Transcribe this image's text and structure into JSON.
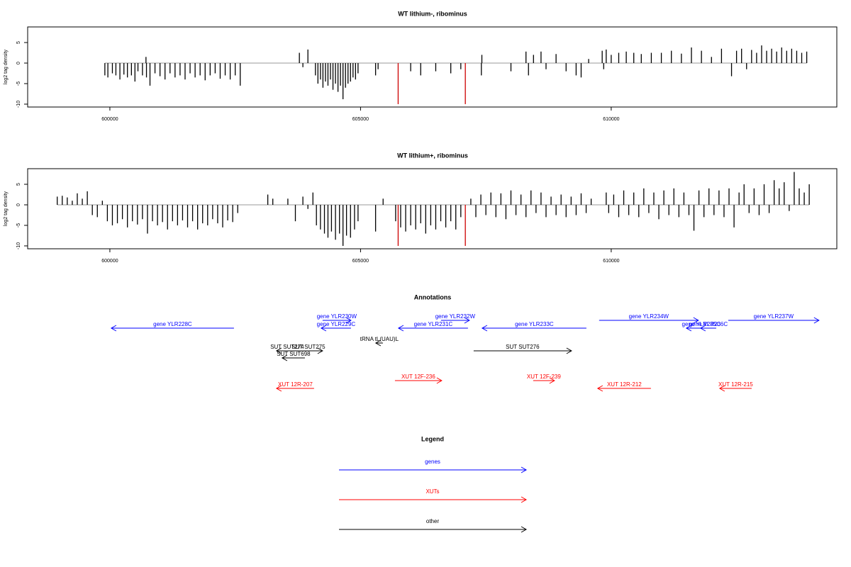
{
  "chart_data": [
    {
      "type": "spike",
      "title": "WT lithium-, ribominus",
      "y_label": "log2 tag density",
      "xlim": [
        598360,
        614500
      ],
      "ylim": [
        -10.7,
        8.8
      ],
      "xticks": [
        600000,
        605000,
        610000
      ],
      "yticks": [
        -10,
        -5,
        0,
        5
      ],
      "series": [
        {
          "color": "#000000",
          "x": [
            599900,
            599960,
            600050,
            600120,
            600200,
            600280,
            600350,
            600430,
            600500,
            600560,
            600650,
            600720,
            600730,
            600800,
            600900,
            601000,
            601100,
            601200,
            601300,
            601400,
            601500,
            601600,
            601700,
            601800,
            601900,
            602000,
            602100,
            602200,
            602300,
            602400,
            602500,
            602600,
            603780,
            603850,
            603950,
            604100,
            604150,
            604200,
            604250,
            604300,
            604350,
            604400,
            604450,
            604500,
            604550,
            604600,
            604650,
            604700,
            604750,
            604800,
            604850,
            604900,
            604950,
            605300,
            605350,
            606000,
            606200,
            606500,
            606800,
            607000,
            607410,
            607420,
            608000,
            608300,
            608350,
            608450,
            608600,
            608700,
            608900,
            609100,
            609300,
            609400,
            609550,
            609820,
            609850,
            609900,
            610000,
            610150,
            610300,
            610450,
            610600,
            610800,
            611000,
            611200,
            611400,
            611600,
            611800,
            612000,
            612200,
            612400,
            612500,
            612600,
            612700,
            612800,
            612900,
            613000,
            613100,
            613200,
            613300,
            613400,
            613500,
            613600,
            613700,
            613800,
            613900
          ],
          "values": [
            -3,
            -3.5,
            -2.5,
            -3,
            -4,
            -2.8,
            -3.5,
            -3,
            -4.5,
            -2,
            -3,
            1.5,
            -3.5,
            -5.5,
            -2.5,
            -3.2,
            -4,
            -2.5,
            -3.5,
            -3,
            -4,
            -2.5,
            -3.5,
            -3,
            -4.2,
            -3,
            -2.5,
            -3.8,
            -3,
            -4,
            -3,
            -5.5,
            2.5,
            -1,
            3.3,
            -3,
            -5,
            -4,
            -6,
            -4.5,
            -5.5,
            -4,
            -6.5,
            -5,
            -7,
            -5.5,
            -8.8,
            -6,
            -5,
            -4.5,
            -3.5,
            -4,
            -2.5,
            -3,
            -1.5,
            -2,
            -3,
            -2,
            -2.5,
            -1.5,
            -3,
            2,
            -2,
            2.8,
            -3,
            2,
            2.8,
            -1.5,
            2.2,
            -2,
            -3,
            -3.5,
            1,
            3,
            -1.5,
            3.3,
            2,
            2.5,
            2.8,
            2.5,
            2.2,
            2.5,
            2.5,
            3,
            2.3,
            3.8,
            3,
            1.5,
            3.5,
            -3.2,
            3,
            3.5,
            -1.5,
            3.2,
            2.5,
            4.3,
            3,
            3.5,
            2.8,
            3.8,
            3,
            3.5,
            3,
            2.5,
            2.8
          ]
        },
        {
          "color": "#cc0000",
          "x": [
            605750,
            607090
          ],
          "values": [
            -10,
            -10
          ]
        }
      ]
    },
    {
      "type": "spike",
      "title": "WT lithium+, ribominus",
      "y_label": "log2 tag density",
      "xlim": [
        598360,
        614500
      ],
      "ylim": [
        -10.7,
        8.8
      ],
      "xticks": [
        600000,
        605000,
        610000
      ],
      "yticks": [
        -10,
        -5,
        0,
        5
      ],
      "series": [
        {
          "color": "#000000",
          "x": [
            598950,
            599050,
            599150,
            599250,
            599350,
            599450,
            599550,
            599650,
            599750,
            599850,
            599950,
            600050,
            600150,
            600250,
            600350,
            600450,
            600550,
            600650,
            600750,
            600850,
            600950,
            601050,
            601150,
            601250,
            601350,
            601450,
            601550,
            601650,
            601750,
            601850,
            601950,
            602050,
            602150,
            602250,
            602350,
            602450,
            602550,
            603150,
            603250,
            603550,
            603700,
            603850,
            603950,
            604050,
            604120,
            604200,
            604280,
            604350,
            604420,
            604500,
            604580,
            604650,
            604720,
            604800,
            604880,
            604950,
            605300,
            605450,
            605700,
            605800,
            605900,
            606000,
            606100,
            606200,
            606300,
            606400,
            606500,
            606600,
            606700,
            606800,
            606900,
            607000,
            607200,
            607300,
            607400,
            607500,
            607600,
            607700,
            607800,
            607900,
            608000,
            608100,
            608200,
            608300,
            608400,
            608500,
            608600,
            608700,
            608800,
            608900,
            609000,
            609100,
            609200,
            609300,
            609400,
            609500,
            609600,
            609900,
            609950,
            610050,
            610150,
            610250,
            610350,
            610450,
            610550,
            610650,
            610750,
            610850,
            610950,
            611050,
            611150,
            611250,
            611350,
            611450,
            611550,
            611650,
            611750,
            611850,
            611950,
            612050,
            612150,
            612250,
            612350,
            612450,
            612550,
            612650,
            612750,
            612850,
            612950,
            613050,
            613150,
            613250,
            613350,
            613450,
            613550,
            613650,
            613750,
            613850,
            613950
          ],
          "values": [
            2,
            2.2,
            1.8,
            1,
            2.8,
            1.5,
            3.3,
            -2.5,
            -3,
            1,
            -4,
            -5,
            -4.5,
            -3.5,
            -5.5,
            -4,
            -4.8,
            -3.5,
            -7,
            -4,
            -5,
            -4.2,
            -6,
            -4,
            -5,
            -3.8,
            -5.5,
            -4,
            -6,
            -4.5,
            -5,
            -3.5,
            -4.5,
            -5.5,
            -3.8,
            -4.2,
            -2,
            2.5,
            1.5,
            1.5,
            -4,
            2,
            -1,
            3,
            -5,
            -6,
            -7,
            -8,
            -6.5,
            -8.5,
            -7,
            -10,
            -7.5,
            -8,
            -6,
            -4,
            -6.5,
            1.5,
            -4,
            -5.5,
            -6.5,
            -5,
            -6,
            -4.5,
            -7,
            -5,
            -6,
            -4,
            -5.5,
            -4,
            -6,
            -3,
            1.5,
            -3,
            2.5,
            -2.5,
            3,
            -3,
            2.8,
            -3.5,
            3.5,
            -2.5,
            2.5,
            -3,
            3.5,
            -2,
            3,
            -3,
            2,
            -2.5,
            2.5,
            -3,
            2,
            -2.5,
            2.8,
            -2,
            1.5,
            3,
            -2,
            2.5,
            -3,
            3.5,
            -2.5,
            3,
            -3,
            4,
            -2,
            3,
            -3.5,
            3.5,
            -2.5,
            4,
            -3,
            3,
            -2.5,
            -6.3,
            3.5,
            -3,
            4,
            -2.5,
            3.5,
            -3,
            4,
            -5.5,
            3,
            5,
            -2,
            4,
            -2.5,
            5,
            -2,
            6,
            4,
            5.5,
            -1.5,
            8,
            4,
            3,
            5
          ]
        },
        {
          "color": "#cc0000",
          "x": [
            605750,
            607090
          ],
          "values": [
            -10,
            -10
          ]
        }
      ]
    }
  ],
  "annotations": {
    "title": "Annotations",
    "features": [
      {
        "label": "gene YLR228C",
        "start": 600028,
        "end": 602475,
        "strand": "-",
        "kind": 0
      },
      {
        "label": "gene YLR230W",
        "start": 604243,
        "end": 604809,
        "strand": "+",
        "kind": 0
      },
      {
        "label": "gene YLR229C",
        "start": 604215,
        "end": 604809,
        "strand": "-",
        "kind": 0
      },
      {
        "label": "gene YLR232W",
        "start": 606605,
        "end": 607171,
        "strand": "+",
        "kind": 0
      },
      {
        "label": "gene YLR231C",
        "start": 605757,
        "end": 607143,
        "strand": "-",
        "kind": 0
      },
      {
        "label": "gene YLR233C",
        "start": 607426,
        "end": 609505,
        "strand": "-",
        "kind": 0
      },
      {
        "label": "gene YLR234W",
        "start": 609759,
        "end": 611739,
        "strand": "+",
        "kind": 0
      },
      {
        "label": "gene YLR235C",
        "start": 611499,
        "end": 612093,
        "strand": "-",
        "kind": 0
      },
      {
        "label": "gene YLR236C",
        "start": 611782,
        "end": 612093,
        "strand": "-",
        "kind": 0
      },
      {
        "label": "gene YLR237W",
        "start": 612334,
        "end": 614144,
        "strand": "+",
        "kind": 0
      },
      {
        "label": "tRNA tL(UAU)L",
        "start": 605304,
        "end": 605446,
        "strand": "-",
        "kind": 2
      },
      {
        "label": "SUT SUT274",
        "start": 603324,
        "end": 603748,
        "strand": "-",
        "kind": 2
      },
      {
        "label": "SUT SUT275",
        "start": 603677,
        "end": 604243,
        "strand": "+",
        "kind": 2
      },
      {
        "label": "SUT SUT698",
        "start": 603437,
        "end": 603890,
        "strand": "-",
        "kind": 2
      },
      {
        "label": "SUT SUT276",
        "start": 607256,
        "end": 609208,
        "strand": "+",
        "kind": 2
      },
      {
        "label": "XUT 12R-207",
        "start": 603324,
        "end": 604073,
        "strand": "-",
        "kind": 1
      },
      {
        "label": "XUT 12F-236",
        "start": 605686,
        "end": 606619,
        "strand": "+",
        "kind": 1
      },
      {
        "label": "XUT 12F-239",
        "start": 608444,
        "end": 608868,
        "strand": "+",
        "kind": 1
      },
      {
        "label": "XUT 12R-212",
        "start": 609731,
        "end": 610792,
        "strand": "-",
        "kind": 1
      },
      {
        "label": "XUT 12R-215",
        "start": 612164,
        "end": 612801,
        "strand": "-",
        "kind": 1
      }
    ]
  },
  "legend": {
    "title": "Legend",
    "entries": [
      {
        "label": "genes",
        "color": "#0000ff"
      },
      {
        "label": "XUTs",
        "color": "#ff0000"
      },
      {
        "label": "other",
        "color": "#000000"
      }
    ]
  }
}
